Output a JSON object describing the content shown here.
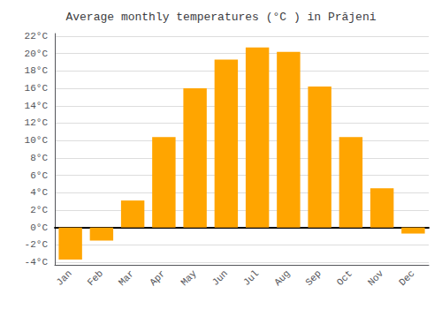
{
  "chart_data": {
    "type": "bar",
    "title": "Average monthly temperatures (°C ) in Prăjeni",
    "categories": [
      "Jan",
      "Feb",
      "Mar",
      "Apr",
      "May",
      "Jun",
      "Jul",
      "Aug",
      "Sep",
      "Oct",
      "Nov",
      "Dec"
    ],
    "values": [
      -3.7,
      -1.5,
      3.1,
      10.4,
      16.0,
      19.3,
      20.7,
      20.2,
      16.2,
      10.4,
      4.5,
      -0.7
    ],
    "color": "#FFA500",
    "ylim": [
      -4.3,
      22.3
    ],
    "yticks": [
      {
        "value": -4,
        "label": "-4°C"
      },
      {
        "value": -2,
        "label": "-2°C"
      },
      {
        "value": 0,
        "label": "0°C"
      },
      {
        "value": 2,
        "label": "2°C"
      },
      {
        "value": 4,
        "label": "4°C"
      },
      {
        "value": 6,
        "label": "6°C"
      },
      {
        "value": 8,
        "label": "8°C"
      },
      {
        "value": 10,
        "label": "10°C"
      },
      {
        "value": 12,
        "label": "12°C"
      },
      {
        "value": 14,
        "label": "14°C"
      },
      {
        "value": 16,
        "label": "16°C"
      },
      {
        "value": 18,
        "label": "18°C"
      },
      {
        "value": 20,
        "label": "20°C"
      },
      {
        "value": 22,
        "label": "22°C"
      }
    ],
    "grid": true
  }
}
